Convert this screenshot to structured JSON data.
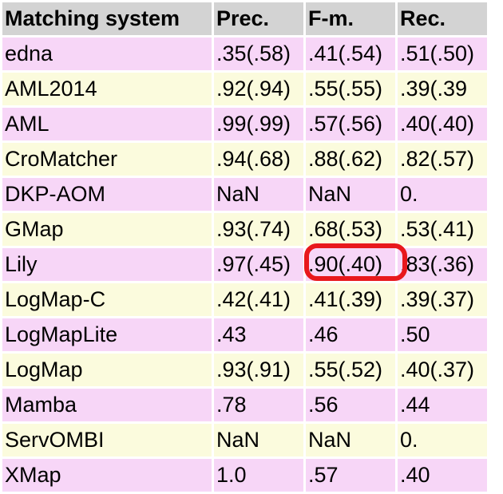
{
  "table": {
    "headers": [
      "Matching system",
      "Prec.",
      "F-m.",
      "Rec."
    ],
    "rows": [
      {
        "system": "edna",
        "prec": ".35(.58)",
        "fm": ".41(.54)",
        "rec": ".51(.50)"
      },
      {
        "system": "AML2014",
        "prec": ".92(.94)",
        "fm": ".55(.55)",
        "rec": ".39(.39"
      },
      {
        "system": "AML",
        "prec": ".99(.99)",
        "fm": ".57(.56)",
        "rec": ".40(.40)"
      },
      {
        "system": "CroMatcher",
        "prec": ".94(.68)",
        "fm": ".88(.62)",
        "rec": ".82(.57)"
      },
      {
        "system": "DKP-AOM",
        "prec": "NaN",
        "fm": "NaN",
        "rec": "0."
      },
      {
        "system": "GMap",
        "prec": ".93(.74)",
        "fm": ".68(.53)",
        "rec": ".53(.41)"
      },
      {
        "system": "Lily",
        "prec": ".97(.45)",
        "fm": ".90(.40)",
        "rec": ".83(.36)"
      },
      {
        "system": "LogMap-C",
        "prec": ".42(.41)",
        "fm": ".41(.39)",
        "rec": ".39(.37)"
      },
      {
        "system": "LogMapLite",
        "prec": ".43",
        "fm": ".46",
        "rec": ".50"
      },
      {
        "system": "LogMap",
        "prec": ".93(.91)",
        "fm": ".55(.52)",
        "rec": ".40(.37)"
      },
      {
        "system": "Mamba",
        "prec": ".78",
        "fm": ".56",
        "rec": ".44"
      },
      {
        "system": "ServOMBI",
        "prec": "NaN",
        "fm": "NaN",
        "rec": "0."
      },
      {
        "system": "XMap",
        "prec": "1.0",
        "fm": ".57",
        "rec": ".40"
      }
    ]
  },
  "colors": {
    "header_bg": "#d3d3d3",
    "row_pink": "#f7d6f7",
    "row_yellow": "#fbfbdd",
    "highlight_ring": "#e8181c"
  }
}
